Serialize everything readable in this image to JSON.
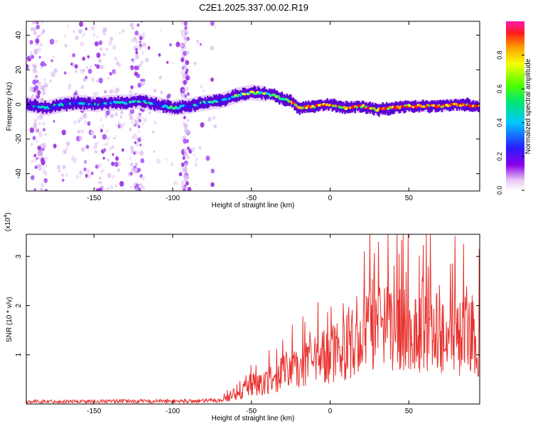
{
  "figure": {
    "title": "C2E1.2025.337.00.02.R19"
  },
  "colorbar": {
    "label": "Normalized spectral amplitude",
    "ticks": [
      "0.0",
      "0.2",
      "0.4",
      "0.6",
      "0.8"
    ]
  },
  "chart_data": [
    {
      "type": "heatmap",
      "xlabel": "Height of straight line (km)",
      "ylabel": "Frequency (Hz)",
      "xlim": [
        -193,
        95
      ],
      "ylim": [
        -50,
        48
      ],
      "x_ticks": [
        -150,
        -100,
        -50,
        0,
        50
      ],
      "y_ticks": [
        -40,
        -20,
        0,
        20,
        40
      ],
      "ridge": {
        "x": [
          -193,
          -180,
          -170,
          -160,
          -150,
          -140,
          -130,
          -120,
          -110,
          -100,
          -90,
          -80,
          -70,
          -60,
          -50,
          -40,
          -35,
          -30,
          -25,
          -20,
          -10,
          0,
          10,
          20,
          30,
          40,
          50,
          60,
          70,
          80,
          95
        ],
        "y": [
          0,
          -2,
          0,
          1,
          0,
          1,
          1,
          2,
          0,
          -2,
          -1,
          1,
          2,
          5,
          7,
          6,
          5,
          3,
          2,
          -2,
          -1,
          0,
          -2,
          -1,
          -3,
          -2,
          -1,
          -1,
          -1,
          0,
          -1
        ]
      },
      "color_scale": {
        "min": 0.0,
        "max": 1.0
      }
    },
    {
      "type": "line",
      "xlabel": "Height of straight line (km)",
      "ylabel": "SNR (10 * v/v)",
      "scale_note": "(x10",
      "scale_exp": "4",
      "xlim": [
        -193,
        95
      ],
      "ylim": [
        0,
        3.45
      ],
      "x_ticks": [
        -150,
        -100,
        -50,
        0,
        50
      ],
      "y_ticks": [
        1,
        2,
        3
      ],
      "series": [
        {
          "color": "#e8322e",
          "envelope": {
            "x": [
              -193,
              -80,
              -70,
              -55,
              -50,
              -45,
              -40,
              -30,
              -20,
              -10,
              0,
              10,
              20,
              25,
              30,
              35,
              40,
              50,
              60,
              70,
              80,
              95
            ],
            "y": [
              0.05,
              0.06,
              0.08,
              0.25,
              0.5,
              0.45,
              0.55,
              0.75,
              0.85,
              1.0,
              1.2,
              1.35,
              1.55,
              1.75,
              1.75,
              1.8,
              1.8,
              1.7,
              1.7,
              1.7,
              1.6,
              1.5
            ]
          }
        }
      ]
    }
  ]
}
